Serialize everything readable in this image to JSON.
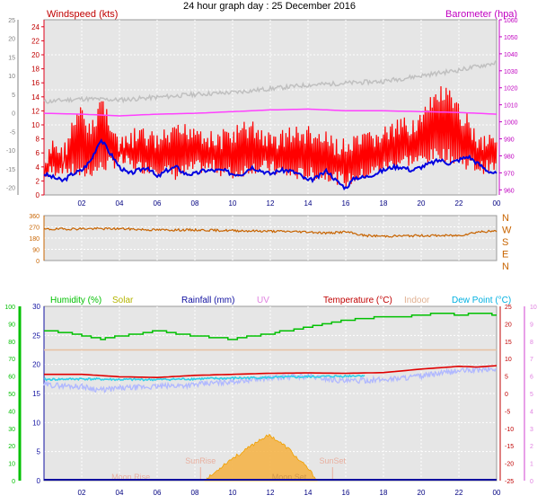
{
  "page_title": "24 hour graph day : 25 December 2016",
  "colors": {
    "plot_bg": "#e6e6e6",
    "grid": "#ffffff",
    "wind_left_axis": "#e0001a",
    "baro_axis": "#c000c0",
    "dir_axis": "#c86400",
    "humidity": "#00c000",
    "solar": "#b4b400",
    "rainfall": "#1010a0",
    "uv": "#e080e0",
    "temperature": "#c00000",
    "indoor": "#e0b090",
    "dewpoint": "#00b0e0",
    "x_ticks": "#000080",
    "left_grey": "#808080"
  },
  "chart_data": [
    {
      "type": "line",
      "panel": "wind-barometer",
      "x_ticks": [
        "02",
        "04",
        "06",
        "08",
        "10",
        "12",
        "14",
        "16",
        "18",
        "20",
        "22",
        "00"
      ],
      "left_axis": {
        "title": "Windspeed (kts)",
        "ticks": [
          0,
          2,
          4,
          6,
          8,
          10,
          12,
          14,
          16,
          18,
          20,
          22,
          24
        ],
        "ylim": [
          0,
          25
        ]
      },
      "outer_left_axis": {
        "ticks": [
          -20,
          -15,
          -10,
          -5,
          0,
          5,
          10,
          15,
          20,
          25
        ]
      },
      "right_axis": {
        "title": "Barometer (hpa)",
        "ticks": [
          960,
          970,
          980,
          990,
          1000,
          1010,
          1020,
          1030,
          1040,
          1050,
          1060
        ],
        "ylim": [
          957,
          1060
        ]
      },
      "series": [
        {
          "color": "#ff0000",
          "kind": "gust",
          "x": [
            0,
            0.5,
            1,
            1.5,
            2,
            2.5,
            3,
            3.5,
            4,
            5,
            6,
            7,
            8,
            9,
            10,
            11,
            12,
            13,
            14,
            15,
            16,
            17,
            18,
            19,
            20,
            20.5,
            21,
            21.5,
            22,
            22.5,
            23,
            24
          ],
          "y": [
            4,
            9,
            7,
            11,
            13,
            10,
            15,
            12,
            8,
            10,
            9,
            10,
            11,
            9,
            10,
            11,
            9,
            10,
            10,
            9,
            8,
            9,
            10,
            11,
            12,
            14,
            16,
            15,
            13,
            12,
            9,
            10
          ]
        },
        {
          "color": "#ff0000",
          "kind": "lull",
          "x": [
            0,
            1,
            2,
            3,
            4,
            5,
            6,
            7,
            8,
            9,
            10,
            11,
            12,
            13,
            14,
            15,
            16,
            17,
            18,
            19,
            20,
            21,
            22,
            23,
            24
          ],
          "y": [
            2,
            3,
            2,
            3,
            4,
            3,
            3,
            2,
            3,
            3,
            2,
            3,
            3,
            2,
            2,
            2,
            1,
            2,
            3,
            4,
            4,
            5,
            4,
            3,
            3
          ]
        },
        {
          "color": "#0000e0",
          "kind": "average",
          "x": [
            0,
            0.5,
            1,
            1.5,
            2,
            2.5,
            3,
            3.5,
            4,
            4.5,
            5,
            5.5,
            6,
            6.5,
            7,
            7.5,
            8,
            8.5,
            9,
            9.5,
            10,
            10.5,
            11,
            11.5,
            12,
            12.5,
            13,
            13.5,
            14,
            14.5,
            15,
            15.5,
            16,
            16.5,
            17,
            17.5,
            18,
            18.5,
            19,
            19.5,
            20,
            20.5,
            21,
            21.5,
            22,
            22.5,
            23,
            23.5,
            24
          ],
          "y": [
            3,
            2.5,
            2,
            3,
            3.5,
            5,
            8,
            6,
            4,
            3,
            3.5,
            4,
            2.5,
            3.5,
            4,
            3,
            3,
            3.5,
            3.5,
            3.5,
            3,
            3,
            4,
            3.5,
            3,
            3.5,
            3.5,
            3,
            2,
            2.5,
            3.5,
            2,
            1,
            2.5,
            2.5,
            3,
            3.5,
            4,
            4,
            3.5,
            4,
            4.5,
            5,
            4.5,
            5,
            5.5,
            4.5,
            3.5,
            3
          ]
        },
        {
          "color": "#ff40ff",
          "kind": "barometer",
          "x": [
            0,
            2,
            4,
            6,
            8,
            10,
            12,
            14,
            16,
            18,
            20,
            22,
            24
          ],
          "y": [
            1005,
            1004.5,
            1003.5,
            1004.5,
            1005,
            1006,
            1007,
            1007.5,
            1006.5,
            1006.5,
            1006,
            1005.5,
            1004.5
          ]
        },
        {
          "color": "#c0c0c0",
          "kind": "outer-left",
          "x": [
            0,
            2,
            4,
            6,
            8,
            10,
            12,
            14,
            16,
            18,
            20,
            22,
            24
          ],
          "y": [
            3,
            3.8,
            3.5,
            4.2,
            5.0,
            5.5,
            6.5,
            7.5,
            8.0,
            8.5,
            10.0,
            11.5,
            13.5
          ]
        }
      ]
    },
    {
      "type": "scatter",
      "panel": "wind-direction",
      "left_axis": {
        "ticks": [
          0,
          90,
          180,
          270,
          360
        ],
        "ylim": [
          0,
          360
        ]
      },
      "right_axis_labels": [
        "N",
        "W",
        "S",
        "E",
        "N"
      ],
      "x_ticks": [],
      "series": [
        {
          "color": "#c86400",
          "x": [
            0,
            2,
            4,
            6,
            8,
            10,
            12,
            14,
            15,
            16,
            17,
            18,
            20,
            22,
            23,
            24
          ],
          "y": [
            250,
            255,
            255,
            245,
            245,
            240,
            235,
            230,
            220,
            230,
            200,
            195,
            200,
            200,
            230,
            235
          ]
        }
      ]
    },
    {
      "type": "line",
      "panel": "humidity-temperature",
      "legend": [
        "Humidity (%)",
        "Solar",
        "Rainfall (mm)",
        "UV",
        "Temperature (°C)",
        "Indoor",
        "Dew Point (°C)"
      ],
      "x_ticks": [
        "02",
        "04",
        "06",
        "08",
        "10",
        "12",
        "14",
        "16",
        "18",
        "20",
        "22",
        "00"
      ],
      "left_axis": {
        "ticks": [
          0,
          10,
          20,
          30,
          40,
          50,
          60,
          70,
          80,
          90,
          100
        ],
        "ylim": [
          0,
          100
        ]
      },
      "inner_left_axis": {
        "ticks": [
          0,
          5,
          10,
          15,
          20,
          25,
          30
        ],
        "ylim": [
          0,
          30
        ]
      },
      "right_axis": {
        "ticks": [
          -25,
          -20,
          -15,
          -10,
          -5,
          0,
          5,
          10,
          15,
          20,
          25
        ],
        "ylim": [
          -25,
          25
        ]
      },
      "outer_right_axis": {
        "ticks": [
          0,
          1,
          2,
          3,
          4,
          5,
          6,
          7,
          8,
          9,
          10
        ],
        "ylim": [
          0,
          10
        ]
      },
      "annotations": [
        {
          "text": "Moon Rise",
          "x": 4.6
        },
        {
          "text": "SunRise",
          "x": 8.3
        },
        {
          "text": "SunSet",
          "x": 15.3
        },
        {
          "text": "Moon Set",
          "x": 13.0
        }
      ],
      "series": [
        {
          "name": "Humidity (%)",
          "color": "#00c000",
          "x": [
            0,
            1,
            2,
            3,
            4,
            5,
            6,
            7,
            8,
            9,
            10,
            11,
            12,
            12.5,
            13,
            14,
            15,
            16,
            17,
            18,
            19,
            20,
            21,
            22,
            23,
            24
          ],
          "y": [
            86,
            85,
            83,
            81,
            83,
            84,
            86,
            84,
            83,
            82,
            81,
            83,
            84,
            86,
            86,
            88,
            90,
            92,
            93,
            94,
            94,
            95,
            96,
            95,
            96,
            95
          ]
        },
        {
          "name": "Temperature (°C)",
          "color": "#e00000",
          "x": [
            0,
            2,
            4,
            6,
            8,
            10,
            12,
            14,
            16,
            18,
            20,
            22,
            23,
            24
          ],
          "y": [
            5.5,
            5.5,
            4.8,
            4.6,
            5.2,
            5.5,
            5.8,
            5.9,
            5.8,
            6.0,
            7.0,
            7.8,
            7.6,
            8.0
          ]
        },
        {
          "name": "Dew Point (°C)",
          "color": "#30d0e8",
          "x": [
            0,
            2,
            4,
            6,
            8,
            10,
            12,
            14,
            16,
            17
          ],
          "y": [
            4.0,
            4.2,
            4.0,
            4.0,
            4.2,
            4.4,
            4.6,
            4.8,
            5.0,
            5.2
          ]
        },
        {
          "name": "Indoor",
          "color": "#e8c0a0",
          "x": [
            0,
            24
          ],
          "y": [
            12.5,
            12.5
          ]
        },
        {
          "color": "#b0b8ff",
          "kind": "band",
          "x": [
            0,
            2,
            3,
            4,
            6,
            8,
            10,
            12,
            14,
            16,
            18,
            20,
            22,
            24
          ],
          "y": [
            2.5,
            2,
            1,
            1.5,
            2,
            2.5,
            3.5,
            4.5,
            5,
            3.5,
            4,
            5,
            6.5,
            7
          ]
        },
        {
          "name": "Solar",
          "color": "#f0a000",
          "x": [
            8.5,
            9,
            9.5,
            10,
            10.5,
            11,
            11.5,
            12,
            12.5,
            13,
            13.5,
            14,
            14.5
          ],
          "y": [
            0,
            0.4,
            0.9,
            1.3,
            1.6,
            2.0,
            2.4,
            2.6,
            2.2,
            1.8,
            1.2,
            0.7,
            0
          ]
        }
      ]
    }
  ]
}
